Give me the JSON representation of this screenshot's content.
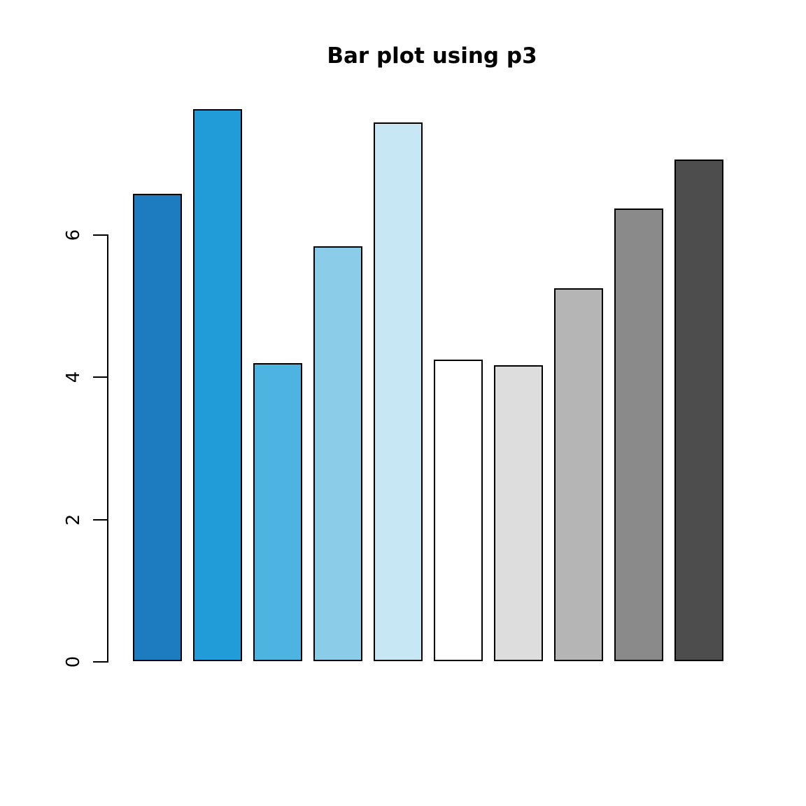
{
  "chart_data": {
    "type": "bar",
    "title": "Bar plot using p3",
    "values": [
      6.57,
      7.76,
      4.19,
      5.83,
      7.57,
      4.24,
      4.16,
      5.24,
      6.36,
      7.05
    ],
    "bar_colors": [
      "#1D7CBF",
      "#219CD8",
      "#4DB4E2",
      "#8BCDE9",
      "#C8E7F5",
      "#FFFFFF",
      "#DDDDDD",
      "#B5B5B5",
      "#8A8A8A",
      "#4D4D4D"
    ],
    "bar_border_color": "#000000",
    "categories": [
      "",
      "",
      "",
      "",
      "",
      "",
      "",
      "",
      "",
      ""
    ],
    "yticks": [
      "0",
      "2",
      "4",
      "6"
    ],
    "ytick_values": [
      0,
      2,
      4,
      6
    ],
    "ylim": [
      0,
      7.9
    ],
    "xlabel": "",
    "ylabel": "",
    "grid": false,
    "legend": "none"
  }
}
